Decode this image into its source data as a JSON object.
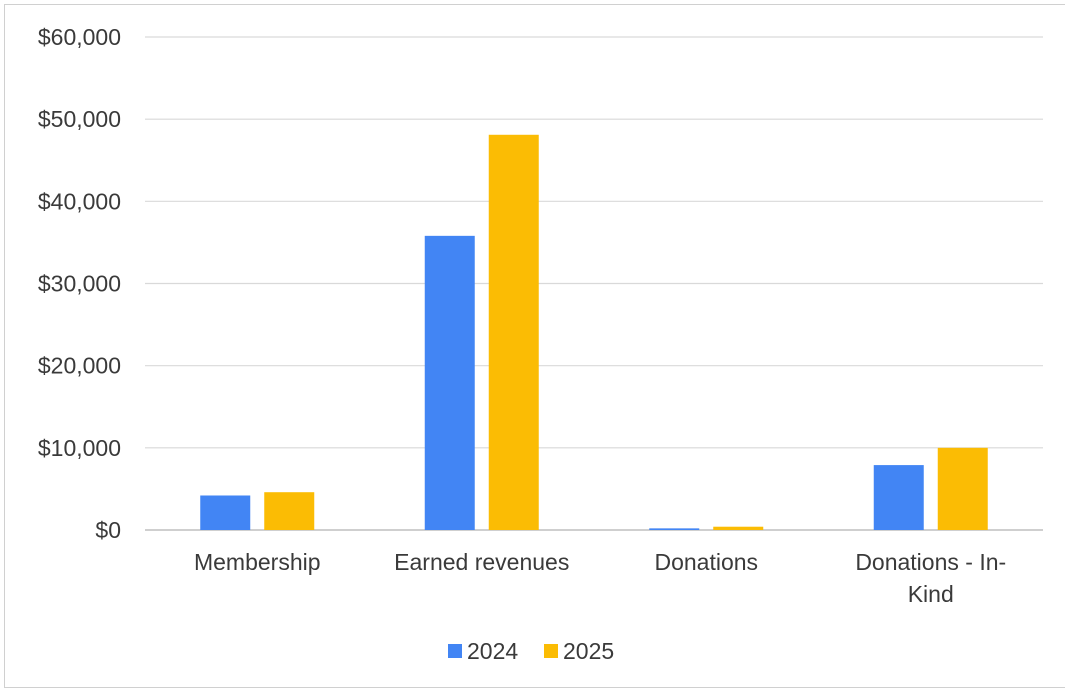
{
  "chart_data": {
    "type": "bar",
    "title": "",
    "xlabel": "",
    "ylabel": "",
    "categories": [
      [
        "Membership"
      ],
      [
        "Earned revenues"
      ],
      [
        "Donations"
      ],
      [
        "Donations - In-",
        "Kind"
      ]
    ],
    "series": [
      {
        "name": "2024",
        "color": "#4285f4",
        "values": [
          4200,
          35800,
          200,
          7900
        ]
      },
      {
        "name": "2025",
        "color": "#fbbc04",
        "values": [
          4600,
          48100,
          400,
          10000
        ]
      }
    ],
    "ylim": [
      0,
      60000
    ],
    "yticks": [
      0,
      10000,
      20000,
      30000,
      40000,
      50000,
      60000
    ],
    "ytick_labels": [
      "$0",
      "$10,000",
      "$20,000",
      "$30,000",
      "$40,000",
      "$50,000",
      "$60,000"
    ],
    "grid": true,
    "legend_position": "bottom-center",
    "colors": {
      "grid": "#d9d9d9",
      "axis": "#bfbfbf",
      "text": "#3a3a3a"
    }
  }
}
